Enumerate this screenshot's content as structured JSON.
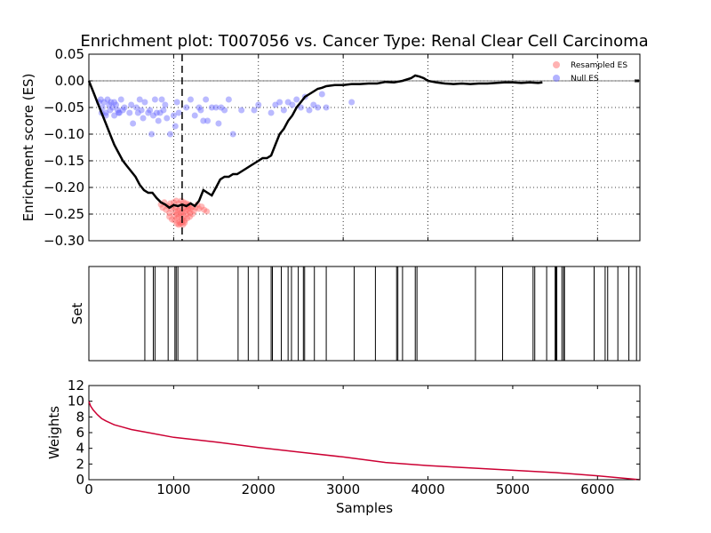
{
  "chart_data": [
    {
      "panel": "enrichment",
      "type": "line",
      "title": "Enrichment plot: T007056 vs. Cancer Type: Renal Clear Cell Carcinoma",
      "ylabel": "Enrichment score (ES)",
      "xlim": [
        0,
        6500
      ],
      "ylim": [
        -0.3,
        0.05
      ],
      "yticks": [
        0.05,
        0.0,
        -0.05,
        -0.1,
        -0.15,
        -0.2,
        -0.25,
        -0.3
      ],
      "ytick_labels": [
        "0.05",
        "0.00",
        "−0.05",
        "−0.10",
        "−0.15",
        "−0.20",
        "−0.25",
        "−0.30"
      ],
      "grid": true,
      "legend_position": "top-right",
      "leading_edge_x": 1100,
      "series": [
        {
          "name": "",
          "kind": "running_es",
          "color": "#000000",
          "x": [
            0,
            50,
            100,
            150,
            200,
            250,
            300,
            350,
            400,
            450,
            500,
            550,
            600,
            650,
            700,
            750,
            800,
            850,
            900,
            950,
            1000,
            1050,
            1100,
            1150,
            1200,
            1250,
            1300,
            1350,
            1400,
            1450,
            1500,
            1550,
            1600,
            1650,
            1700,
            1750,
            1800,
            1850,
            1900,
            1950,
            2000,
            2050,
            2100,
            2150,
            2200,
            2250,
            2300,
            2350,
            2400,
            2450,
            2500,
            2550,
            2600,
            2650,
            2700,
            2750,
            2800,
            2900,
            3000,
            3100,
            3200,
            3300,
            3400,
            3500,
            3600,
            3700,
            3800,
            3850,
            3900,
            3950,
            4000,
            4100,
            4200,
            4300,
            4400,
            4500,
            4600,
            4700,
            4800,
            4900,
            5000,
            5100,
            5200,
            5300,
            5350
          ],
          "y": [
            0.0,
            -0.02,
            -0.04,
            -0.06,
            -0.08,
            -0.1,
            -0.12,
            -0.135,
            -0.15,
            -0.16,
            -0.17,
            -0.18,
            -0.195,
            -0.205,
            -0.21,
            -0.21,
            -0.22,
            -0.228,
            -0.232,
            -0.238,
            -0.233,
            -0.235,
            -0.232,
            -0.235,
            -0.23,
            -0.235,
            -0.225,
            -0.205,
            -0.21,
            -0.215,
            -0.2,
            -0.185,
            -0.18,
            -0.18,
            -0.175,
            -0.175,
            -0.17,
            -0.165,
            -0.16,
            -0.155,
            -0.15,
            -0.145,
            -0.145,
            -0.14,
            -0.12,
            -0.1,
            -0.09,
            -0.075,
            -0.065,
            -0.05,
            -0.04,
            -0.03,
            -0.025,
            -0.02,
            -0.015,
            -0.013,
            -0.01,
            -0.008,
            -0.008,
            -0.006,
            -0.006,
            -0.005,
            -0.005,
            -0.002,
            -0.003,
            0.0,
            0.005,
            0.01,
            0.008,
            0.005,
            0.0,
            -0.003,
            -0.005,
            -0.006,
            -0.005,
            -0.006,
            -0.005,
            -0.005,
            -0.004,
            -0.003,
            -0.003,
            -0.004,
            -0.003,
            -0.004,
            -0.003
          ]
        },
        {
          "name": "Resampled ES",
          "kind": "scatter",
          "color": "#ff6666",
          "x": [
            850,
            870,
            890,
            910,
            930,
            950,
            970,
            990,
            1010,
            1020,
            1030,
            1040,
            1050,
            1060,
            1070,
            1080,
            1090,
            1100,
            1110,
            1120,
            1130,
            1140,
            1150,
            1160,
            1170,
            1180,
            1190,
            1200,
            1220,
            1240,
            1260,
            1280,
            1300,
            1330,
            1360,
            1390,
            950,
            980,
            1010,
            1040,
            1070,
            1100,
            1130,
            1160,
            1190,
            1220,
            1000,
            1030,
            1060,
            1090,
            1120,
            1150,
            1180,
            1060,
            1080,
            1100,
            1040,
            1110,
            1130,
            960
          ],
          "y": [
            -0.232,
            -0.238,
            -0.228,
            -0.242,
            -0.235,
            -0.248,
            -0.24,
            -0.236,
            -0.252,
            -0.245,
            -0.238,
            -0.25,
            -0.243,
            -0.255,
            -0.24,
            -0.248,
            -0.252,
            -0.246,
            -0.24,
            -0.255,
            -0.238,
            -0.245,
            -0.25,
            -0.235,
            -0.242,
            -0.238,
            -0.248,
            -0.24,
            -0.236,
            -0.244,
            -0.238,
            -0.232,
            -0.24,
            -0.236,
            -0.242,
            -0.245,
            -0.255,
            -0.26,
            -0.262,
            -0.258,
            -0.265,
            -0.26,
            -0.262,
            -0.258,
            -0.255,
            -0.25,
            -0.228,
            -0.225,
            -0.23,
            -0.225,
            -0.228,
            -0.23,
            -0.232,
            -0.27,
            -0.268,
            -0.265,
            -0.268,
            -0.27,
            -0.266,
            -0.23
          ]
        },
        {
          "name": "Null ES",
          "kind": "scatter",
          "color": "#6666ff",
          "x": [
            120,
            140,
            160,
            180,
            200,
            220,
            240,
            260,
            280,
            300,
            320,
            340,
            360,
            380,
            400,
            420,
            480,
            500,
            520,
            560,
            580,
            600,
            620,
            640,
            660,
            700,
            720,
            740,
            760,
            780,
            800,
            820,
            840,
            860,
            880,
            900,
            920,
            960,
            1000,
            1020,
            1040,
            1060,
            1150,
            1200,
            1250,
            1300,
            1320,
            1350,
            1380,
            1400,
            1450,
            1500,
            1530,
            1560,
            1650,
            1700,
            1950,
            2000,
            2150,
            2200,
            2250,
            2300,
            2350,
            2400,
            2450,
            2500,
            2550,
            2600,
            2650,
            2700,
            2750,
            2800,
            3100,
            150,
            200,
            250,
            300,
            350,
            1600,
            1800
          ],
          "y": [
            -0.04,
            -0.035,
            -0.05,
            -0.04,
            -0.06,
            -0.035,
            -0.045,
            -0.04,
            -0.05,
            -0.04,
            -0.045,
            -0.055,
            -0.06,
            -0.035,
            -0.055,
            -0.05,
            -0.06,
            -0.045,
            -0.08,
            -0.05,
            -0.06,
            -0.035,
            -0.055,
            -0.07,
            -0.04,
            -0.06,
            -0.055,
            -0.1,
            -0.065,
            -0.035,
            -0.06,
            -0.075,
            -0.06,
            -0.035,
            -0.055,
            -0.045,
            -0.07,
            -0.1,
            -0.065,
            -0.085,
            -0.04,
            -0.06,
            -0.05,
            -0.035,
            -0.065,
            -0.05,
            -0.055,
            -0.075,
            -0.035,
            -0.075,
            -0.05,
            -0.05,
            -0.08,
            -0.05,
            -0.035,
            -0.1,
            -0.055,
            -0.045,
            -0.06,
            -0.045,
            -0.04,
            -0.055,
            -0.04,
            -0.045,
            -0.035,
            -0.05,
            -0.03,
            -0.055,
            -0.045,
            -0.05,
            -0.025,
            -0.05,
            -0.04,
            -0.06,
            -0.065,
            -0.055,
            -0.065,
            -0.06,
            -0.055,
            -0.055
          ]
        }
      ]
    },
    {
      "panel": "set",
      "type": "bar",
      "ylabel": "Set",
      "xlim": [
        0,
        6500
      ],
      "color": "#000000",
      "hit_positions": [
        660,
        760,
        780,
        935,
        1015,
        1030,
        1050,
        1280,
        1760,
        1880,
        2000,
        2150,
        2165,
        2270,
        2350,
        2390,
        2470,
        2530,
        2545,
        2660,
        2800,
        3130,
        3380,
        3630,
        3645,
        3700,
        3850,
        3870,
        4560,
        4880,
        5240,
        5260,
        5400,
        5500,
        5510,
        5520,
        5580,
        5600,
        5610,
        5960,
        6090,
        6120,
        6240,
        6370,
        6460
      ]
    },
    {
      "panel": "weights",
      "type": "line",
      "ylabel": "Weights",
      "xlabel": "Samples",
      "xlim": [
        0,
        6500
      ],
      "ylim": [
        0,
        12
      ],
      "xticks": [
        0,
        1000,
        2000,
        3000,
        4000,
        5000,
        6000
      ],
      "xtick_labels": [
        "0",
        "1000",
        "2000",
        "3000",
        "4000",
        "5000",
        "6000"
      ],
      "yticks": [
        0,
        2,
        4,
        6,
        8,
        10,
        12
      ],
      "ytick_labels": [
        "0",
        "2",
        "4",
        "6",
        "8",
        "10",
        "12"
      ],
      "series": [
        {
          "name": "",
          "color": "#cc0033",
          "x": [
            0,
            20,
            50,
            100,
            150,
            200,
            300,
            400,
            500,
            700,
            1000,
            1500,
            2000,
            2500,
            3000,
            3500,
            4000,
            4500,
            5000,
            5500,
            6000,
            6300,
            6500
          ],
          "y": [
            10.0,
            9.4,
            8.9,
            8.3,
            7.8,
            7.5,
            7.0,
            6.7,
            6.4,
            6.0,
            5.4,
            4.8,
            4.1,
            3.5,
            2.9,
            2.2,
            1.8,
            1.5,
            1.2,
            0.9,
            0.5,
            0.2,
            0.0
          ]
        }
      ]
    }
  ]
}
